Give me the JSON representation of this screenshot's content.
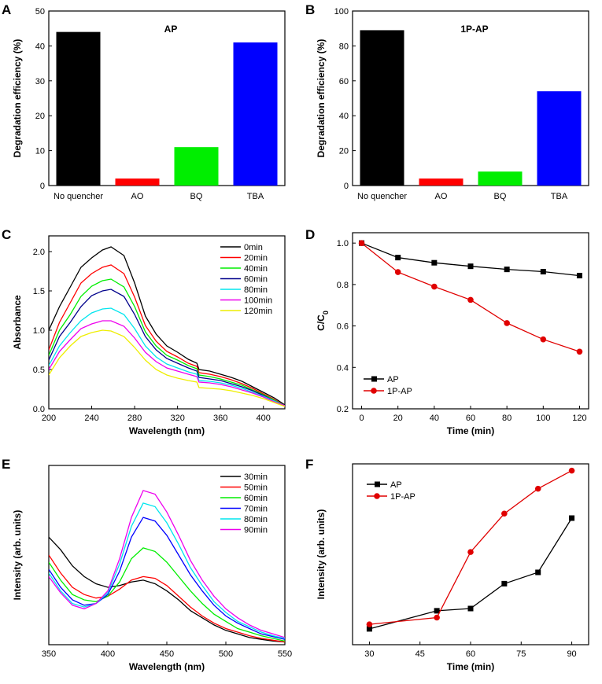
{
  "colors": {
    "axis": "#000000",
    "black": "#000000",
    "red": "#ff0000",
    "green": "#00ee00",
    "blue": "#0000ff",
    "darkblue": "#00008b",
    "cyan": "#00e5ee",
    "magenta": "#ee00ee",
    "yellow": "#eeee00",
    "ap_line": "#000000",
    "p1ap_line": "#e00000"
  },
  "chart_data": [
    {
      "id": "A",
      "letter": "A",
      "type": "bar",
      "inner_title": "AP",
      "categories": [
        "No quencher",
        "AO",
        "BQ",
        "TBA"
      ],
      "values": [
        44,
        2,
        11,
        41
      ],
      "bar_colors": [
        "black",
        "red",
        "green",
        "blue"
      ],
      "ylabel": "Degradation efficiency (%)",
      "ylim": [
        0,
        50
      ],
      "yticks": [
        0,
        10,
        20,
        30,
        40,
        50
      ]
    },
    {
      "id": "B",
      "letter": "B",
      "type": "bar",
      "inner_title": "1P-AP",
      "categories": [
        "No quencher",
        "AO",
        "BQ",
        "TBA"
      ],
      "values": [
        89,
        4,
        8,
        54
      ],
      "bar_colors": [
        "black",
        "red",
        "green",
        "blue"
      ],
      "ylabel": "Degradation efficiency (%)",
      "ylim": [
        0,
        100
      ],
      "yticks": [
        0,
        20,
        40,
        60,
        80,
        100
      ]
    },
    {
      "id": "C",
      "letter": "C",
      "type": "line",
      "xlabel": "Wavelength (nm)",
      "ylabel": "Absorbance",
      "xlim": [
        200,
        420
      ],
      "ylim": [
        0,
        2.2
      ],
      "xticks": [
        200,
        240,
        280,
        320,
        360,
        400
      ],
      "yticks": [
        0.0,
        0.5,
        1.0,
        1.5,
        2.0
      ],
      "ytick_labels": [
        "0.0",
        "0.5",
        "1.0",
        "1.5",
        "2.0"
      ],
      "legend_position": "top-right",
      "series": [
        {
          "name": "0min",
          "color": "black",
          "x": [
            200,
            210,
            220,
            230,
            240,
            250,
            258,
            270,
            280,
            290,
            300,
            310,
            320,
            330,
            338,
            340,
            350,
            360,
            370,
            380,
            390,
            400,
            410,
            420
          ],
          "y": [
            1.0,
            1.3,
            1.55,
            1.8,
            1.92,
            2.02,
            2.06,
            1.95,
            1.6,
            1.18,
            0.95,
            0.8,
            0.72,
            0.63,
            0.58,
            0.5,
            0.48,
            0.44,
            0.4,
            0.35,
            0.28,
            0.21,
            0.14,
            0.05
          ]
        },
        {
          "name": "20min",
          "color": "red",
          "x": [
            200,
            210,
            220,
            230,
            240,
            250,
            258,
            270,
            280,
            290,
            300,
            310,
            320,
            330,
            338,
            340,
            350,
            360,
            370,
            380,
            390,
            400,
            410,
            420
          ],
          "y": [
            0.75,
            1.1,
            1.35,
            1.6,
            1.72,
            1.8,
            1.83,
            1.72,
            1.42,
            1.06,
            0.86,
            0.73,
            0.66,
            0.58,
            0.54,
            0.46,
            0.44,
            0.41,
            0.37,
            0.32,
            0.26,
            0.19,
            0.12,
            0.04
          ]
        },
        {
          "name": "40min",
          "color": "green",
          "x": [
            200,
            210,
            220,
            230,
            240,
            250,
            258,
            270,
            280,
            290,
            300,
            310,
            320,
            330,
            338,
            340,
            350,
            360,
            370,
            380,
            390,
            400,
            410,
            420
          ],
          "y": [
            0.68,
            1.0,
            1.2,
            1.43,
            1.56,
            1.63,
            1.65,
            1.55,
            1.3,
            0.98,
            0.8,
            0.68,
            0.62,
            0.55,
            0.51,
            0.43,
            0.41,
            0.38,
            0.34,
            0.3,
            0.24,
            0.18,
            0.11,
            0.04
          ]
        },
        {
          "name": "60min",
          "color": "darkblue",
          "x": [
            200,
            210,
            220,
            230,
            240,
            250,
            258,
            270,
            280,
            290,
            300,
            310,
            320,
            330,
            338,
            340,
            350,
            360,
            370,
            380,
            390,
            400,
            410,
            420
          ],
          "y": [
            0.62,
            0.92,
            1.1,
            1.3,
            1.44,
            1.5,
            1.52,
            1.43,
            1.2,
            0.92,
            0.75,
            0.64,
            0.58,
            0.52,
            0.48,
            0.4,
            0.38,
            0.36,
            0.32,
            0.28,
            0.23,
            0.17,
            0.1,
            0.04
          ]
        },
        {
          "name": "80min",
          "color": "cyan",
          "x": [
            200,
            210,
            220,
            230,
            240,
            250,
            258,
            270,
            280,
            290,
            300,
            310,
            320,
            330,
            338,
            340,
            350,
            360,
            370,
            380,
            390,
            400,
            410,
            420
          ],
          "y": [
            0.55,
            0.8,
            0.97,
            1.12,
            1.22,
            1.27,
            1.28,
            1.2,
            1.02,
            0.8,
            0.66,
            0.57,
            0.52,
            0.47,
            0.44,
            0.36,
            0.35,
            0.33,
            0.3,
            0.26,
            0.21,
            0.16,
            0.1,
            0.04
          ]
        },
        {
          "name": "100min",
          "color": "magenta",
          "x": [
            200,
            210,
            220,
            230,
            240,
            250,
            258,
            270,
            280,
            290,
            300,
            310,
            320,
            330,
            338,
            340,
            350,
            360,
            370,
            380,
            390,
            400,
            410,
            420
          ],
          "y": [
            0.5,
            0.73,
            0.88,
            1.02,
            1.08,
            1.12,
            1.12,
            1.05,
            0.9,
            0.72,
            0.6,
            0.52,
            0.48,
            0.44,
            0.41,
            0.34,
            0.33,
            0.31,
            0.28,
            0.24,
            0.2,
            0.15,
            0.09,
            0.04
          ]
        },
        {
          "name": "120min",
          "color": "yellow",
          "x": [
            200,
            210,
            220,
            230,
            240,
            250,
            258,
            270,
            280,
            290,
            300,
            310,
            320,
            330,
            338,
            340,
            350,
            360,
            370,
            380,
            390,
            400,
            410,
            420
          ],
          "y": [
            0.43,
            0.65,
            0.8,
            0.92,
            0.97,
            1.0,
            0.99,
            0.92,
            0.78,
            0.62,
            0.5,
            0.43,
            0.39,
            0.36,
            0.34,
            0.27,
            0.26,
            0.25,
            0.23,
            0.2,
            0.17,
            0.13,
            0.08,
            0.03
          ]
        }
      ]
    },
    {
      "id": "D",
      "letter": "D",
      "type": "line",
      "xlabel": "Time (min)",
      "ylabel": "C/C",
      "ylabel_sub": "0",
      "xlim": [
        -5,
        125
      ],
      "ylim": [
        0.2,
        1.05
      ],
      "xticks": [
        0,
        20,
        40,
        60,
        80,
        100,
        120
      ],
      "yticks": [
        0.2,
        0.4,
        0.6,
        0.8,
        1.0
      ],
      "ytick_labels": [
        "0.2",
        "0.4",
        "0.6",
        "0.8",
        "1.0"
      ],
      "legend_position": "bottom-left",
      "series": [
        {
          "name": "AP",
          "color": "ap_line",
          "marker": "square",
          "x": [
            0,
            20,
            40,
            60,
            80,
            100,
            120
          ],
          "y": [
            1.0,
            0.93,
            0.905,
            0.888,
            0.873,
            0.862,
            0.843
          ]
        },
        {
          "name": "1P-AP",
          "color": "p1ap_line",
          "marker": "circle",
          "x": [
            0,
            20,
            40,
            60,
            80,
            100,
            120
          ],
          "y": [
            1.0,
            0.86,
            0.79,
            0.726,
            0.614,
            0.535,
            0.476
          ]
        }
      ]
    },
    {
      "id": "E",
      "letter": "E",
      "type": "line",
      "xlabel": "Wavelength (nm)",
      "ylabel": "Intensity (arb. units)",
      "xlim": [
        350,
        550
      ],
      "ylim": [
        0,
        1.0
      ],
      "xticks": [
        350,
        400,
        450,
        500,
        550
      ],
      "yticks": [],
      "legend_position": "top-right",
      "series": [
        {
          "name": "30min",
          "color": "black",
          "x": [
            350,
            360,
            370,
            380,
            390,
            400,
            410,
            420,
            430,
            440,
            450,
            460,
            470,
            480,
            490,
            500,
            510,
            520,
            530,
            540,
            550
          ],
          "y": [
            0.6,
            0.53,
            0.44,
            0.38,
            0.34,
            0.32,
            0.33,
            0.35,
            0.36,
            0.34,
            0.3,
            0.25,
            0.19,
            0.15,
            0.11,
            0.08,
            0.06,
            0.04,
            0.03,
            0.02,
            0.015
          ]
        },
        {
          "name": "50min",
          "color": "red",
          "x": [
            350,
            360,
            370,
            380,
            390,
            400,
            410,
            420,
            430,
            440,
            450,
            460,
            470,
            480,
            490,
            500,
            510,
            520,
            530,
            540,
            550
          ],
          "y": [
            0.5,
            0.4,
            0.32,
            0.28,
            0.26,
            0.27,
            0.31,
            0.36,
            0.38,
            0.37,
            0.33,
            0.27,
            0.21,
            0.16,
            0.12,
            0.09,
            0.07,
            0.05,
            0.035,
            0.025,
            0.015
          ]
        },
        {
          "name": "60min",
          "color": "green",
          "x": [
            350,
            360,
            370,
            380,
            390,
            400,
            410,
            420,
            430,
            440,
            450,
            460,
            470,
            480,
            490,
            500,
            510,
            520,
            530,
            540,
            550
          ],
          "y": [
            0.46,
            0.36,
            0.28,
            0.25,
            0.24,
            0.27,
            0.35,
            0.48,
            0.54,
            0.52,
            0.46,
            0.38,
            0.3,
            0.23,
            0.17,
            0.13,
            0.09,
            0.07,
            0.05,
            0.035,
            0.02
          ]
        },
        {
          "name": "70min",
          "color": "blue",
          "x": [
            350,
            360,
            370,
            380,
            390,
            400,
            410,
            420,
            430,
            440,
            450,
            460,
            470,
            480,
            490,
            500,
            510,
            520,
            530,
            540,
            550
          ],
          "y": [
            0.42,
            0.32,
            0.25,
            0.22,
            0.23,
            0.28,
            0.41,
            0.6,
            0.71,
            0.69,
            0.61,
            0.5,
            0.39,
            0.3,
            0.22,
            0.16,
            0.12,
            0.09,
            0.06,
            0.045,
            0.03
          ]
        },
        {
          "name": "80min",
          "color": "cyan",
          "x": [
            350,
            360,
            370,
            380,
            390,
            400,
            410,
            420,
            430,
            440,
            450,
            460,
            470,
            480,
            490,
            500,
            510,
            520,
            530,
            540,
            550
          ],
          "y": [
            0.4,
            0.3,
            0.23,
            0.21,
            0.23,
            0.29,
            0.45,
            0.66,
            0.79,
            0.77,
            0.68,
            0.56,
            0.43,
            0.33,
            0.24,
            0.18,
            0.13,
            0.1,
            0.07,
            0.05,
            0.035
          ]
        },
        {
          "name": "90min",
          "color": "magenta",
          "x": [
            350,
            360,
            370,
            380,
            390,
            400,
            410,
            420,
            430,
            440,
            450,
            460,
            470,
            480,
            490,
            500,
            510,
            520,
            530,
            540,
            550
          ],
          "y": [
            0.38,
            0.29,
            0.22,
            0.2,
            0.23,
            0.3,
            0.48,
            0.71,
            0.86,
            0.84,
            0.74,
            0.61,
            0.47,
            0.36,
            0.27,
            0.2,
            0.15,
            0.11,
            0.08,
            0.06,
            0.04
          ]
        }
      ]
    },
    {
      "id": "F",
      "letter": "F",
      "type": "line",
      "xlabel": "Time (min)",
      "ylabel": "Intensity (arb. units)",
      "xlim": [
        25,
        95
      ],
      "ylim": [
        0.15,
        0.95
      ],
      "xticks": [
        30,
        45,
        60,
        75,
        90
      ],
      "yticks": [],
      "legend_position": "top-left",
      "series": [
        {
          "name": "AP",
          "color": "ap_line",
          "marker": "square",
          "x": [
            30,
            50,
            60,
            70,
            80,
            90
          ],
          "y": [
            0.22,
            0.3,
            0.31,
            0.42,
            0.47,
            0.71
          ]
        },
        {
          "name": "1P-AP",
          "color": "p1ap_line",
          "marker": "circle",
          "x": [
            30,
            50,
            60,
            70,
            80,
            90
          ],
          "y": [
            0.24,
            0.27,
            0.56,
            0.73,
            0.84,
            0.92
          ]
        }
      ]
    }
  ]
}
